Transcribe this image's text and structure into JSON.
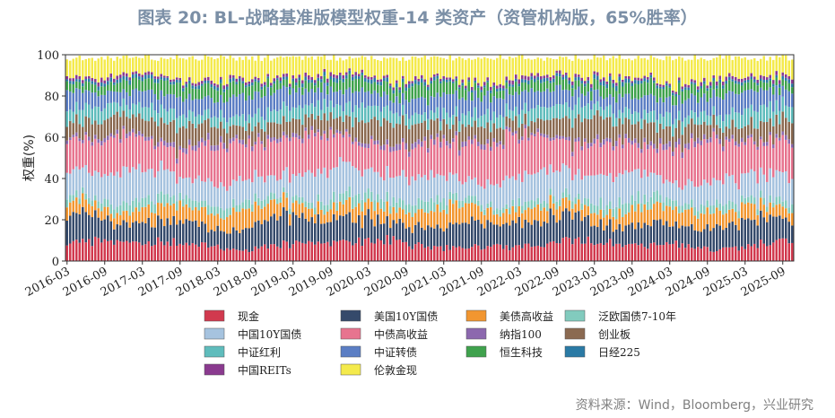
{
  "title": "图表 20: BL-战略基准版模型权重-14 类资产（资管机构版，65%胜率）",
  "source": "资料来源：Wind，Bloomberg，兴业研究",
  "chart_data": {
    "type": "bar",
    "stacked": true,
    "title": "BL-战略基准版模型权重-14 类资产（资管机构版，65%胜率）",
    "ylabel": "权重(%)",
    "ylim": [
      0,
      100
    ],
    "yticks": [
      0,
      20,
      40,
      60,
      80,
      100
    ],
    "x_start": "2016-03",
    "x_end": "2025-11",
    "xtick_labels": [
      "2016-03",
      "2016-09",
      "2017-03",
      "2017-09",
      "2018-03",
      "2018-09",
      "2019-03",
      "2019-09",
      "2020-03",
      "2020-09",
      "2021-03",
      "2021-09",
      "2022-03",
      "2022-09",
      "2023-03",
      "2023-09",
      "2024-03",
      "2024-09",
      "2025-03",
      "2025-09"
    ],
    "note": "Approximately 204 semi-monthly bars, each stacking to about 100%. Base weight (%) per asset as read from the figure; individual bars vary roughly ±20% around these levels.",
    "series": [
      {
        "name": "现金",
        "color": "#d1394e",
        "base": 8
      },
      {
        "name": "美国10Y国债",
        "color": "#354a6b",
        "base": 11
      },
      {
        "name": "美债高收益",
        "color": "#f29630",
        "base": 7
      },
      {
        "name": "泛欧国债7-10年",
        "color": "#82cbbe",
        "base": 4
      },
      {
        "name": "中国10Y国债",
        "color": "#a6c3df",
        "base": 12
      },
      {
        "name": "中债高收益",
        "color": "#e7748f",
        "base": 16
      },
      {
        "name": "纳指100",
        "color": "#8c68ae",
        "base": 2
      },
      {
        "name": "创业板",
        "color": "#8b6a51",
        "base": 8
      },
      {
        "name": "中证红利",
        "color": "#5fbcbc",
        "base": 6
      },
      {
        "name": "中证转债",
        "color": "#5b7ec4",
        "base": 8
      },
      {
        "name": "恒生科技",
        "color": "#3fa24d",
        "base": 5
      },
      {
        "name": "日经225",
        "color": "#2a7aa5",
        "base": 1.5
      },
      {
        "name": "中国REITs",
        "color": "#8a3a8f",
        "base": 1.5
      },
      {
        "name": "伦敦金现",
        "color": "#f4ea4c",
        "base": 10
      }
    ]
  }
}
